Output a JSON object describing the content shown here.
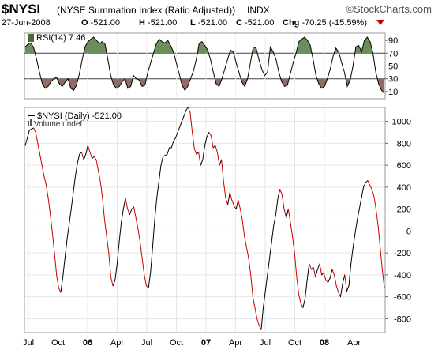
{
  "header": {
    "symbol": "$NYSI",
    "name": "(NYSE Summation Index (Ratio Adjusted))",
    "exchange": "INDX",
    "brand": "©StockCharts.com",
    "date": "27-Jun-2008",
    "open_label": "O",
    "open": "-521.00",
    "high_label": "H",
    "high": "-521.00",
    "low_label": "L",
    "low": "-521.00",
    "close_label": "C",
    "close": "-521.00",
    "chg_label": "Chg",
    "chg": "-70.25 (-15.59%)",
    "colors": {
      "down": "#cc0000"
    }
  },
  "chart_data": [
    {
      "type": "line",
      "panel": "rsi",
      "legend": "RSI(14) 7.46",
      "yticks": [
        90,
        70,
        50,
        30,
        10
      ],
      "ylim": [
        0,
        100
      ],
      "ref_lines": [
        70,
        30
      ],
      "dash_lines": [
        50
      ],
      "colors": {
        "line": "#000000",
        "overbought_fill": "#6b8e5a",
        "oversold_fill": "#8f6d66"
      },
      "series": [
        {
          "values": [
            80,
            84,
            86,
            78,
            60,
            40,
            22,
            15,
            18,
            25,
            30,
            32,
            22,
            18,
            25,
            30,
            15,
            12,
            20,
            38,
            60,
            80,
            88,
            92,
            95,
            90,
            85,
            88,
            84,
            60,
            35,
            20,
            15,
            18,
            25,
            30,
            15,
            18,
            35,
            30,
            28,
            18,
            20,
            40,
            55,
            70,
            85,
            92,
            88,
            86,
            90,
            82,
            72,
            55,
            38,
            20,
            12,
            18,
            30,
            42,
            60,
            85,
            88,
            82,
            75,
            60,
            40,
            22,
            18,
            30,
            45,
            60,
            75,
            72,
            55,
            40,
            25,
            18,
            30,
            55,
            80,
            78,
            60,
            45,
            35,
            40,
            80,
            72,
            60,
            40,
            25,
            18,
            20,
            38,
            55,
            70,
            88,
            92,
            95,
            90,
            82,
            60,
            35,
            22,
            15,
            18,
            30,
            45,
            65,
            78,
            72,
            55,
            40,
            18,
            28,
            50,
            80,
            82,
            72,
            90,
            95,
            88,
            70,
            40,
            22,
            12,
            7
          ]
        }
      ]
    },
    {
      "type": "line",
      "panel": "price",
      "legend": "$NYSI (Daily) -521.00",
      "legend2": "Volume undef",
      "x_labels": [
        "Jul",
        "Oct",
        "06",
        "Apr",
        "Jul",
        "Oct",
        "07",
        "Apr",
        "Jul",
        "Oct",
        "08",
        "Apr"
      ],
      "bold_labels": [
        "06",
        "07",
        "08"
      ],
      "yticks": [
        1000,
        800,
        600,
        400,
        200,
        0,
        -200,
        -400,
        -600,
        -800
      ],
      "ylim": [
        -920,
        1120
      ],
      "colors": {
        "up": "#000000",
        "down": "#cc0000"
      },
      "series": [
        {
          "values": [
            780,
            850,
            920,
            930,
            940,
            900,
            800,
            700,
            600,
            500,
            420,
            300,
            150,
            -20,
            -200,
            -400,
            -520,
            -560,
            -420,
            -250,
            -80,
            60,
            200,
            350,
            500,
            620,
            700,
            720,
            650,
            700,
            780,
            720,
            660,
            680,
            650,
            550,
            450,
            300,
            100,
            -50,
            -200,
            -420,
            -500,
            -450,
            -300,
            -100,
            80,
            200,
            300,
            200,
            150,
            200,
            220,
            120,
            20,
            -100,
            -250,
            -400,
            -500,
            -520,
            -380,
            -150,
            100,
            300,
            450,
            600,
            680,
            690,
            700,
            760,
            760,
            820,
            850,
            900,
            950,
            1000,
            1050,
            1100,
            1130,
            1080,
            900,
            750,
            700,
            720,
            600,
            650,
            780,
            860,
            900,
            870,
            760,
            780,
            720,
            600,
            650,
            450,
            300,
            240,
            350,
            280,
            230,
            200,
            280,
            200,
            100,
            -50,
            -150,
            -250,
            -400,
            -600,
            -700,
            -800,
            -860,
            -900,
            -700,
            -550,
            -400,
            -250,
            -100,
            50,
            150,
            300,
            380,
            330,
            200,
            120,
            200,
            80,
            -50,
            -200,
            -420,
            -580,
            -660,
            -700,
            -620,
            -450,
            -300,
            -350,
            -330,
            -420,
            -350,
            -300,
            -400,
            -380,
            -450,
            -470,
            -430,
            -350,
            -400,
            -500,
            -560,
            -600,
            -480,
            -400,
            -550,
            -500,
            -300,
            -150,
            -20,
            100,
            200,
            300,
            400,
            440,
            460,
            420,
            380,
            320,
            200,
            50,
            -150,
            -350,
            -521
          ]
        }
      ]
    }
  ]
}
